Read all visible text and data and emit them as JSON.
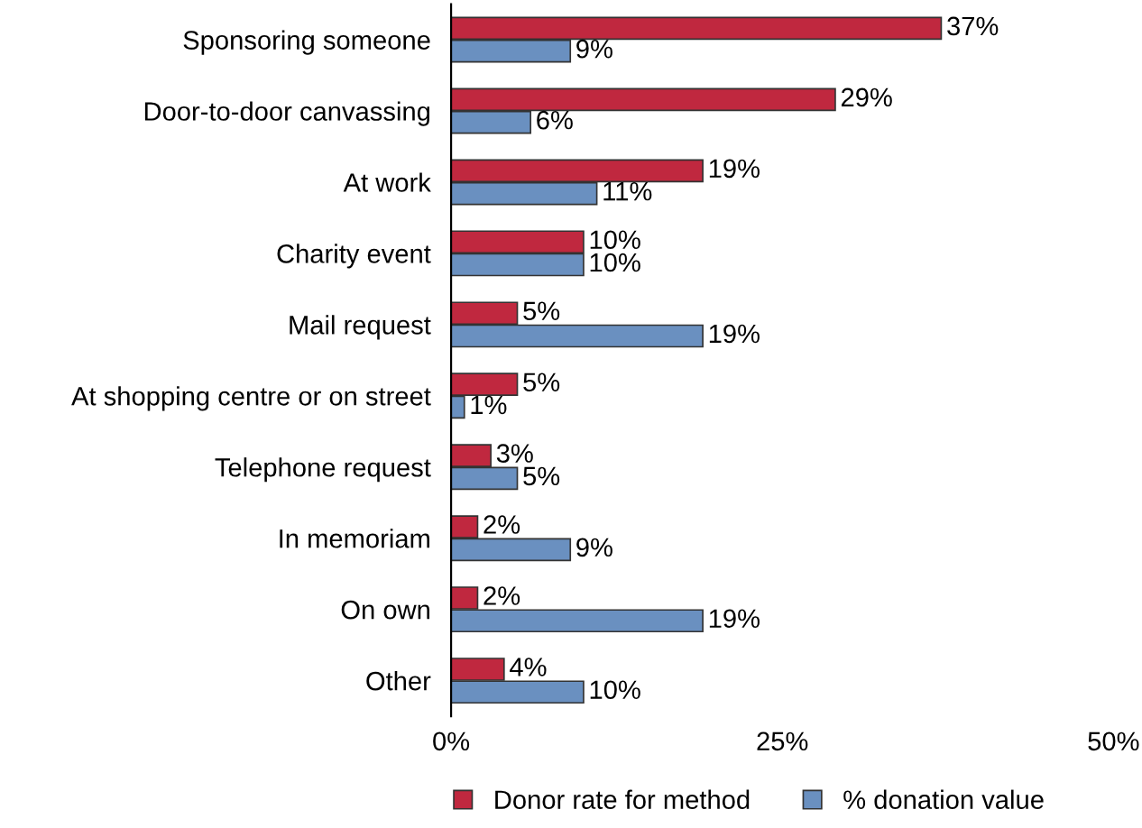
{
  "chart_data": {
    "type": "bar",
    "orientation": "horizontal",
    "categories": [
      "Sponsoring someone",
      "Door-to-door canvassing",
      "At work",
      "Charity event",
      "Mail request",
      "At shopping centre or on street",
      "Telephone request",
      "In memoriam",
      "On own",
      "Other"
    ],
    "series": [
      {
        "name": "Donor rate for method",
        "color": "#c0283f",
        "values": [
          37,
          29,
          19,
          10,
          5,
          5,
          3,
          2,
          2,
          4
        ],
        "value_labels": [
          "37%",
          "29%",
          "19%",
          "10%",
          "5%",
          "5%",
          "3%",
          "2%",
          "2%",
          "4%"
        ]
      },
      {
        "name": "% donation value",
        "color": "#6a90c0",
        "values": [
          9,
          6,
          11,
          10,
          19,
          1,
          5,
          9,
          19,
          10
        ],
        "value_labels": [
          "9%",
          "6%",
          "11%",
          "10%",
          "19%",
          "1%",
          "5%",
          "9%",
          "19%",
          "10%"
        ]
      }
    ],
    "xlim": [
      0,
      50
    ],
    "xticks": [
      {
        "value": 0,
        "label": "0%"
      },
      {
        "value": 25,
        "label": "25%"
      },
      {
        "value": 50,
        "label": "50%"
      }
    ],
    "grid": false,
    "legend": "bottom"
  }
}
